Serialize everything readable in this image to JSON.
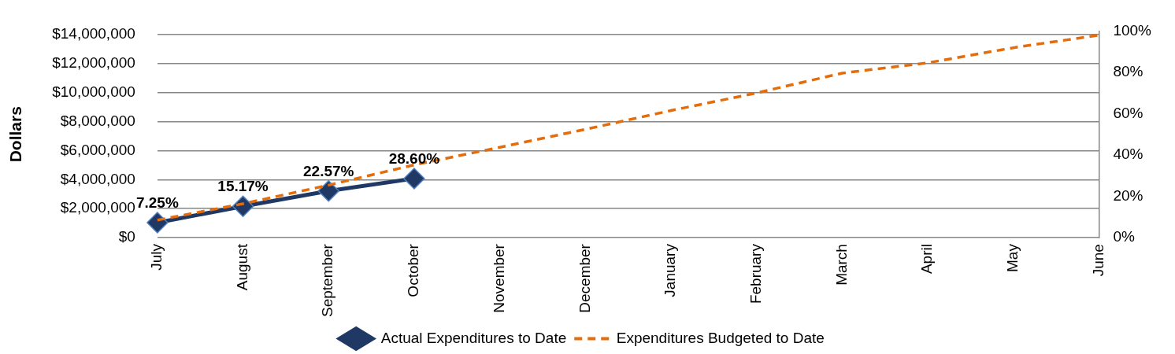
{
  "chart_data": {
    "type": "line",
    "ylabel": "Dollars",
    "categories": [
      "July",
      "August",
      "September",
      "October",
      "November",
      "December",
      "January",
      "February",
      "March",
      "April",
      "May",
      "June"
    ],
    "series": [
      {
        "name": "Actual Expenditures to Date",
        "color": "#1f3864",
        "marker": "diamond",
        "line_style": "solid",
        "axis": "y2",
        "values": [
          7.25,
          15.17,
          22.57,
          28.6,
          null,
          null,
          null,
          null,
          null,
          null,
          null,
          null
        ],
        "value_labels": [
          "7.25%",
          "15.17%",
          "22.57%",
          "28.60%",
          null,
          null,
          null,
          null,
          null,
          null,
          null,
          null
        ]
      },
      {
        "name": "Expenditures Budgeted to Date",
        "color": "#e46c0a",
        "marker": "none",
        "line_style": "dashed",
        "axis": "y2",
        "values": [
          8.5,
          16.4,
          25.4,
          35.2,
          43.7,
          52.4,
          61.5,
          70,
          79.6,
          84.6,
          91.9,
          98
        ]
      }
    ],
    "ylim": [
      0,
      14250000
    ],
    "yticks": [
      {
        "value": 0,
        "label": "$0"
      },
      {
        "value": 2000000,
        "label": "$2,000,000"
      },
      {
        "value": 4000000,
        "label": "$4,000,000"
      },
      {
        "value": 6000000,
        "label": "$6,000,000"
      },
      {
        "value": 8000000,
        "label": "$8,000,000"
      },
      {
        "value": 10000000,
        "label": "$10,000,000"
      },
      {
        "value": 12000000,
        "label": "$12,000,000"
      },
      {
        "value": 14000000,
        "label": "$14,000,000"
      }
    ],
    "y2lim": [
      0,
      100
    ],
    "y2ticks": [
      {
        "value": 0,
        "label": "0%"
      },
      {
        "value": 20,
        "label": "20%"
      },
      {
        "value": 40,
        "label": "40%"
      },
      {
        "value": 60,
        "label": "60%"
      },
      {
        "value": 80,
        "label": "80%"
      },
      {
        "value": 100,
        "label": "100%"
      }
    ],
    "grid": "y",
    "legend": "bottom"
  }
}
